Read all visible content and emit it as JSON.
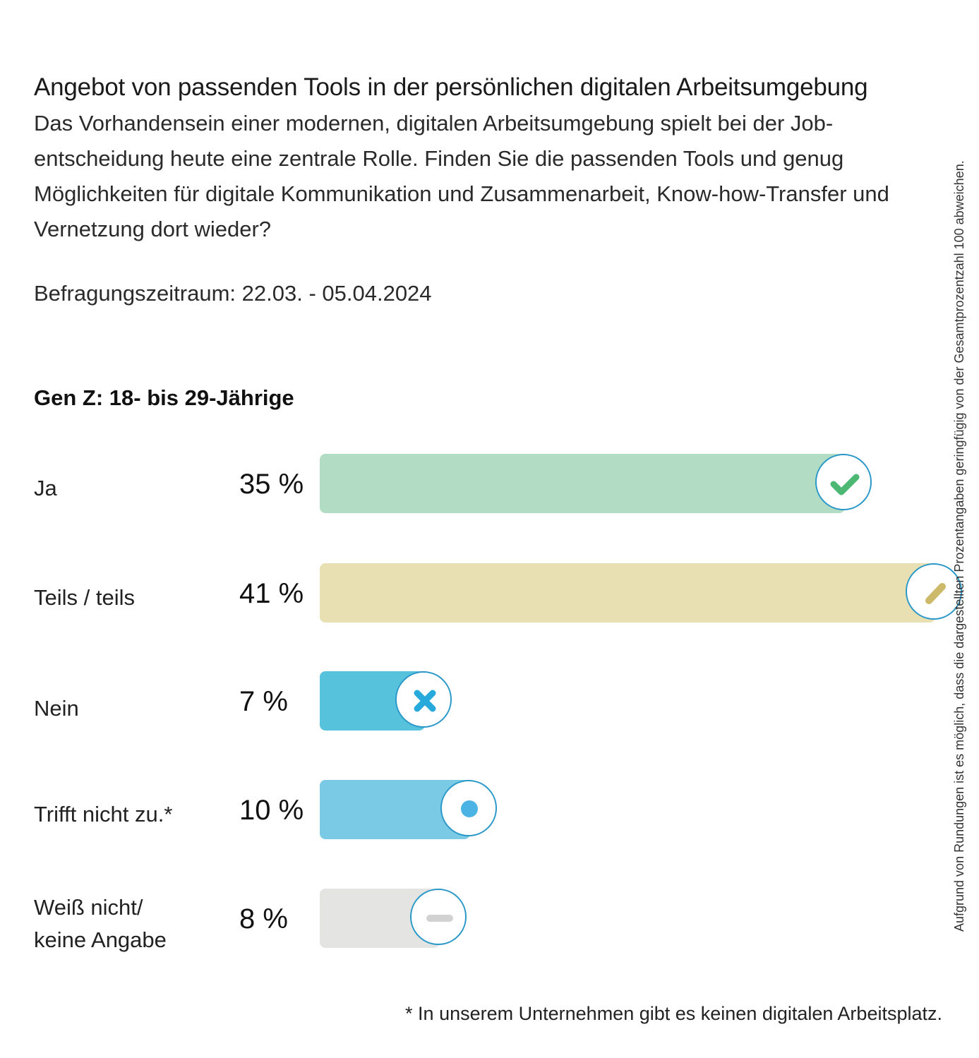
{
  "header": {
    "title": "Angebot von passenden Tools in der persönlichen digitalen Arbeitsumgebung",
    "subtitle": "Das Vorhandensein einer modernen, digitalen Arbeitsumgebung spielt bei der Job­entscheidung heute eine zentrale Rolle. Finden Sie die passenden Tools und genug Möglichkeiten für digitale Kommunikation und Zusammenarbeit, Know-how-Transfer und Vernetzung dort wieder?",
    "period": "Befragungszeitraum: 22.03. - 05.04.2024"
  },
  "group_label": "Gen Z: 18- bis 29-Jährige",
  "side_note": "Aufgrund von Rundungen ist es möglich, dass die dargestellten Prozentangaben geringfügig von der Gesamtprozentzahl 100 abweichen.",
  "footnote": "* In unserem Unternehmen gibt es keinen digitalen Arbeitsplatz.",
  "chart_data": {
    "type": "bar",
    "orientation": "horizontal",
    "title": "Gen Z: 18- bis 29-Jährige",
    "unit": "%",
    "xlim": [
      0,
      41
    ],
    "categories": [
      "Ja",
      "Teils / teils",
      "Nein",
      "Trifft nicht zu.*",
      "Weiß nicht/\nkeine Angabe"
    ],
    "values": [
      35,
      41,
      7,
      10,
      8
    ],
    "value_labels": [
      "35 %",
      "41 %",
      "7 %",
      "10 %",
      "8 %"
    ],
    "colors": [
      "#b2dcc4",
      "#e8dfb2",
      "#56c2dc",
      "#7acae6",
      "#e4e4e2"
    ],
    "icons": [
      "check-icon",
      "pencil-icon",
      "cross-icon",
      "dot-icon",
      "minus-icon"
    ],
    "icon_colors": [
      "#4cb873",
      "#cdb96a",
      "#27a9dc",
      "#4cb4e4",
      "#d2d2d2"
    ]
  }
}
